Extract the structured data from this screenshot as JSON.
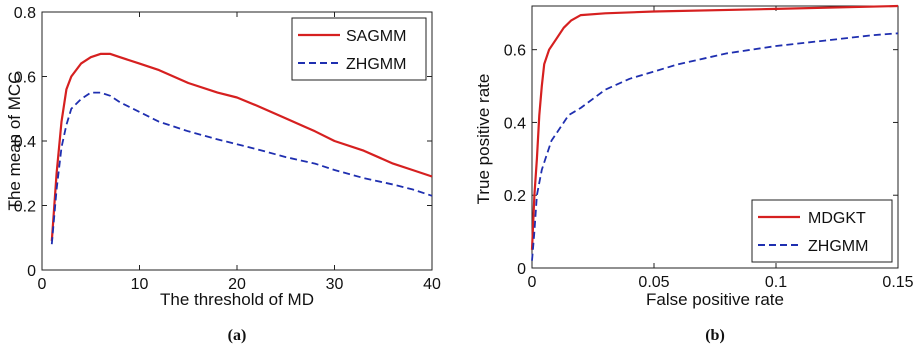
{
  "chart_data": [
    {
      "type": "line",
      "caption": "(a)",
      "xlabel": "The threshold of MD",
      "ylabel": "The mean of MCC",
      "xlim": [
        0,
        40
      ],
      "ylim": [
        0,
        0.8
      ],
      "xticks": [
        "0",
        "10",
        "20",
        "30",
        "40"
      ],
      "yticks": [
        "0",
        "0.2",
        "0.4",
        "0.6",
        "0.8"
      ],
      "legend_position": "top-right",
      "series": [
        {
          "name": "SAGMM",
          "color": "#d62020",
          "style": "solid",
          "x": [
            1,
            1.5,
            2,
            2.5,
            3,
            4,
            5,
            6,
            7,
            8,
            10,
            12,
            15,
            18,
            20,
            22,
            25,
            28,
            30,
            33,
            36,
            38,
            40
          ],
          "y": [
            0.09,
            0.3,
            0.46,
            0.56,
            0.6,
            0.64,
            0.66,
            0.67,
            0.67,
            0.66,
            0.64,
            0.62,
            0.58,
            0.55,
            0.535,
            0.51,
            0.47,
            0.43,
            0.4,
            0.37,
            0.33,
            0.31,
            0.29
          ]
        },
        {
          "name": "ZHGMM",
          "color": "#1f2fb0",
          "style": "dashed",
          "x": [
            1,
            1.5,
            2,
            2.5,
            3,
            4,
            5,
            6,
            7,
            8,
            10,
            12,
            15,
            18,
            20,
            22,
            25,
            28,
            30,
            33,
            36,
            38,
            40
          ],
          "y": [
            0.08,
            0.25,
            0.38,
            0.45,
            0.5,
            0.53,
            0.55,
            0.55,
            0.54,
            0.52,
            0.49,
            0.46,
            0.43,
            0.405,
            0.39,
            0.375,
            0.35,
            0.33,
            0.31,
            0.285,
            0.265,
            0.25,
            0.23
          ]
        }
      ]
    },
    {
      "type": "line",
      "caption": "(b)",
      "xlabel": "False positive rate",
      "ylabel": "True positive rate",
      "xlim": [
        0,
        0.15
      ],
      "ylim": [
        0,
        0.72
      ],
      "xticks": [
        "0",
        "0.05",
        "0.1",
        "0.15"
      ],
      "yticks": [
        "0",
        "0.2",
        "0.4",
        "0.6"
      ],
      "legend_position": "bottom-right",
      "series": [
        {
          "name": "MDGKT",
          "color": "#d62020",
          "style": "solid",
          "x": [
            0,
            0.001,
            0.002,
            0.003,
            0.004,
            0.005,
            0.007,
            0.01,
            0.013,
            0.016,
            0.02,
            0.03,
            0.05,
            0.1,
            0.15
          ],
          "y": [
            0.05,
            0.2,
            0.3,
            0.42,
            0.5,
            0.56,
            0.6,
            0.63,
            0.66,
            0.68,
            0.695,
            0.7,
            0.705,
            0.712,
            0.72
          ]
        },
        {
          "name": "ZHGMM",
          "color": "#1f2fb0",
          "style": "dashed",
          "x": [
            0,
            0.001,
            0.002,
            0.004,
            0.006,
            0.008,
            0.01,
            0.015,
            0.02,
            0.03,
            0.04,
            0.05,
            0.06,
            0.08,
            0.1,
            0.12,
            0.14,
            0.15
          ],
          "y": [
            0.02,
            0.1,
            0.2,
            0.27,
            0.31,
            0.35,
            0.37,
            0.42,
            0.44,
            0.49,
            0.52,
            0.54,
            0.56,
            0.59,
            0.61,
            0.625,
            0.64,
            0.645
          ]
        }
      ]
    }
  ]
}
